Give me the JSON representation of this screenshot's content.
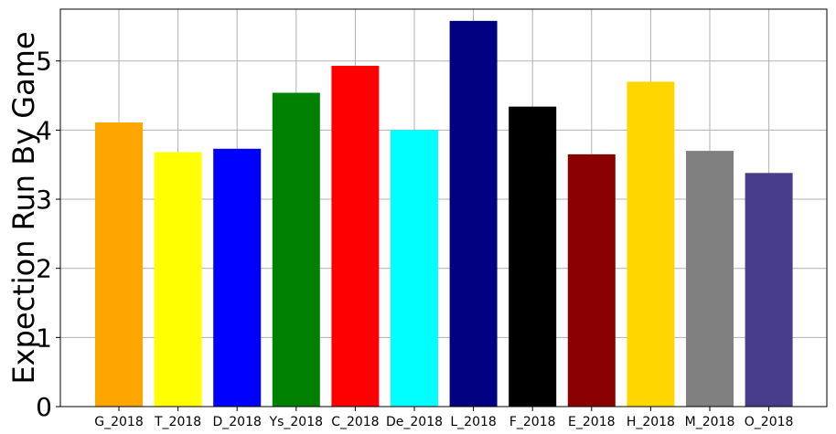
{
  "chart_data": {
    "type": "bar",
    "title": "",
    "xlabel": "",
    "ylabel": "Expection Run By Game",
    "categories": [
      "G_2018",
      "T_2018",
      "D_2018",
      "Ys_2018",
      "C_2018",
      "De_2018",
      "L_2018",
      "F_2018",
      "E_2018",
      "H_2018",
      "M_2018",
      "O_2018"
    ],
    "values": [
      4.11,
      3.68,
      3.73,
      4.54,
      4.93,
      4.0,
      5.58,
      4.34,
      3.65,
      4.7,
      3.7,
      3.38
    ],
    "colors": [
      "#ffa500",
      "#ffff00",
      "#0000ff",
      "#008000",
      "#ff0000",
      "#00ffff",
      "#000080",
      "#000000",
      "#8b0000",
      "#ffd700",
      "#808080",
      "#483d8b"
    ],
    "ylim": [
      0,
      5.75
    ],
    "yticks": [
      "0",
      "1",
      "2",
      "3",
      "4",
      "5"
    ],
    "grid": true,
    "legend": "none"
  }
}
